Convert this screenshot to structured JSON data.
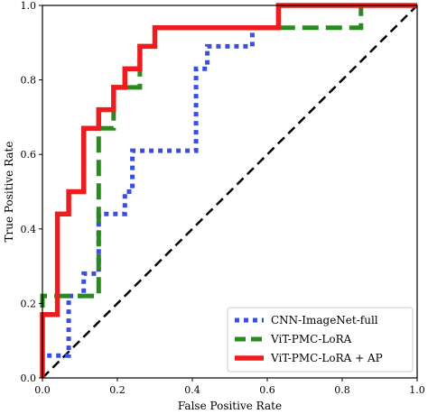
{
  "chart_data": {
    "type": "line",
    "xlabel": "False Positive Rate",
    "ylabel": "True Positive Rate",
    "xlim": [
      0,
      1
    ],
    "ylim": [
      0,
      1
    ],
    "grid": false,
    "legend_position": "bottom-right",
    "xticks": [
      "0.0",
      "0.2",
      "0.4",
      "0.6",
      "0.8",
      "1.0"
    ],
    "yticks": [
      "0.0",
      "0.2",
      "0.4",
      "0.6",
      "0.8",
      "1.0"
    ],
    "diagonal": {
      "style": "dashed",
      "color": "#000000",
      "x": [
        0,
        1
      ],
      "y": [
        0,
        1
      ]
    },
    "series": [
      {
        "name": "CNN-ImageNet-full",
        "color": "#3a4ee0",
        "style": "dotted",
        "x": [
          0,
          0,
          0.07,
          0.07,
          0.11,
          0.11,
          0.15,
          0.15,
          0.22,
          0.22,
          0.24,
          0.24,
          0.41,
          0.41,
          0.44,
          0.44,
          0.56,
          0.56,
          0.63,
          0.63,
          0.85,
          0.85,
          1
        ],
        "y": [
          0,
          0.06,
          0.06,
          0.22,
          0.22,
          0.28,
          0.28,
          0.44,
          0.44,
          0.5,
          0.5,
          0.61,
          0.61,
          0.83,
          0.83,
          0.89,
          0.89,
          0.94,
          0.94,
          1,
          1,
          1,
          1
        ]
      },
      {
        "name": "ViT-PMC-LoRA",
        "color": "#2a8a1f",
        "style": "dashed",
        "x": [
          0,
          0,
          0.15,
          0.15,
          0.19,
          0.19,
          0.26,
          0.26,
          0.3,
          0.3,
          0.33,
          0.33,
          0.85,
          0.85,
          1
        ],
        "y": [
          0,
          0.22,
          0.22,
          0.67,
          0.67,
          0.78,
          0.78,
          0.89,
          0.89,
          0.94,
          0.94,
          0.94,
          0.94,
          1,
          1
        ]
      },
      {
        "name": "ViT-PMC-LoRA + AP",
        "color": "#ee1c1c",
        "style": "solid",
        "x": [
          0,
          0,
          0.04,
          0.04,
          0.07,
          0.07,
          0.11,
          0.11,
          0.15,
          0.15,
          0.19,
          0.19,
          0.22,
          0.22,
          0.26,
          0.26,
          0.3,
          0.3,
          0.63,
          0.63,
          1
        ],
        "y": [
          0,
          0.17,
          0.17,
          0.44,
          0.44,
          0.5,
          0.5,
          0.67,
          0.67,
          0.72,
          0.72,
          0.78,
          0.78,
          0.83,
          0.83,
          0.89,
          0.89,
          0.94,
          0.94,
          1,
          1
        ]
      }
    ]
  }
}
